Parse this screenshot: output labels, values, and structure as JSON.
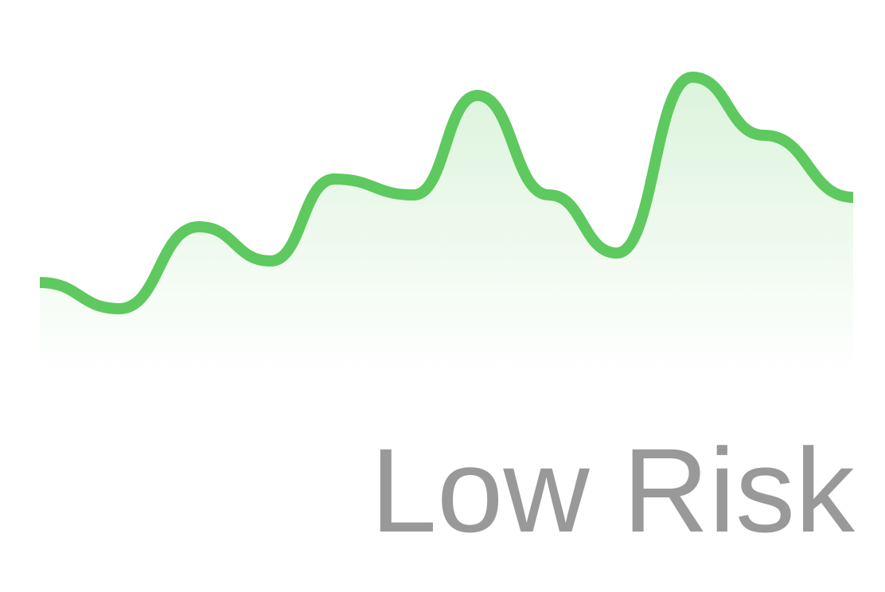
{
  "chart_data": {
    "type": "area",
    "x": [
      0,
      100,
      200,
      290,
      370,
      470,
      550,
      640,
      725,
      820,
      910,
      1022
    ],
    "values": [
      115,
      82,
      185,
      142,
      245,
      225,
      350,
      225,
      152,
      373,
      300,
      222
    ],
    "xlim": [
      0,
      1022
    ],
    "ylim": [
      0,
      400
    ],
    "color": "#5ec95e",
    "label": "Low Risk"
  }
}
